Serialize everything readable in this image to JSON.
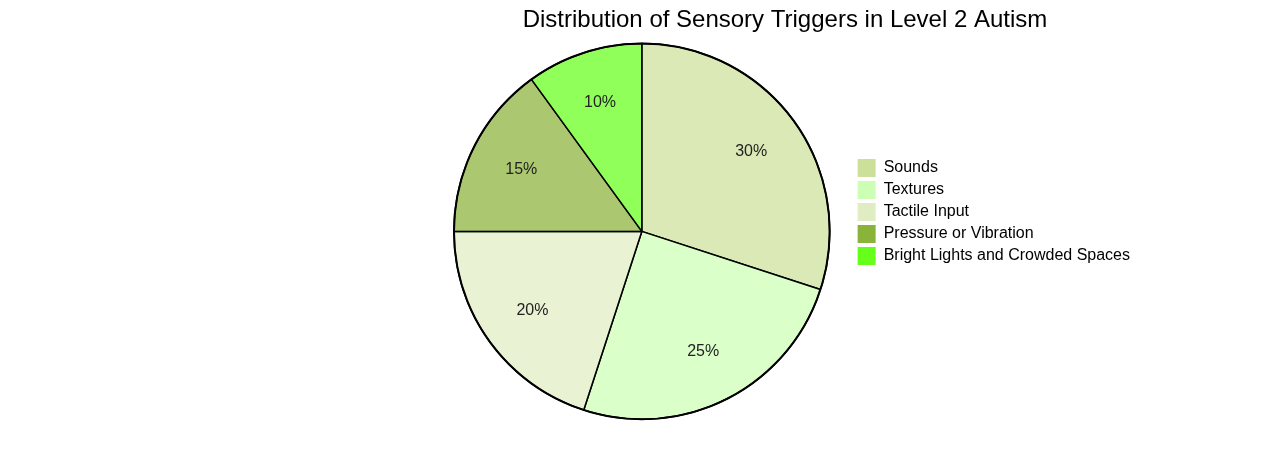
{
  "chart_data": {
    "type": "pie",
    "title": "Distribution of Sensory Triggers in Level 2 Autism",
    "categories": [
      "Sounds",
      "Textures",
      "Tactile Input",
      "Pressure or Vibration",
      "Bright Lights and Crowded Spaces"
    ],
    "values": [
      30,
      25,
      20,
      15,
      10
    ],
    "value_labels": [
      "30%",
      "25%",
      "20%",
      "15%",
      "10%"
    ],
    "colors": [
      "#cce099",
      "#ccffb3",
      "#e0edc2",
      "#8ab33a",
      "#66ff1a"
    ],
    "data_labels": true,
    "legend": "right"
  }
}
